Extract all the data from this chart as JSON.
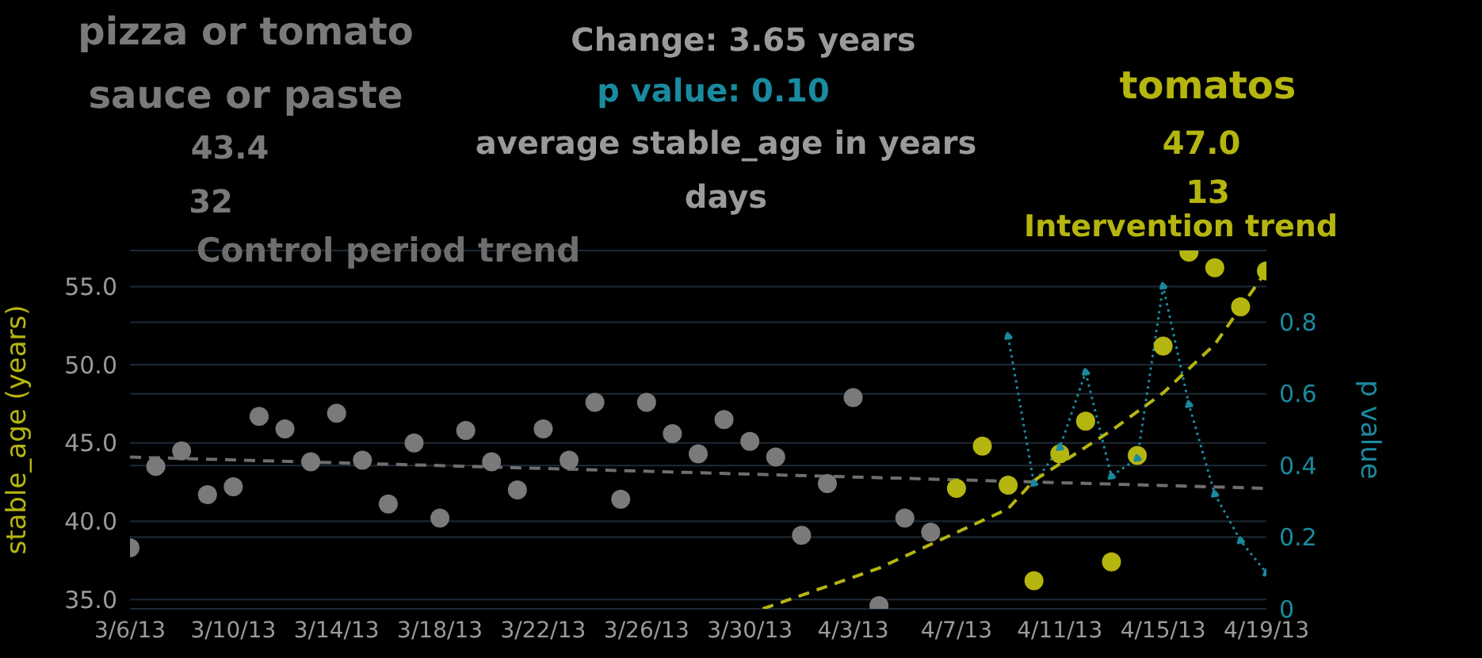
{
  "chart_data": {
    "type": "scatter",
    "ylabel": "stable_age (years)",
    "y2label": "p value",
    "x": [
      "--03-06",
      "--03-07",
      "--03-08",
      "--03-09",
      "--03-10",
      "--03-11",
      "--03-12",
      "--03-13",
      "--03-14",
      "--03-15",
      "--03-16",
      "--03-17",
      "--03-18",
      "--03-19",
      "--03-20",
      "--03-21",
      "--03-22",
      "--03-23",
      "--03-24",
      "--03-25",
      "--03-26",
      "--03-27",
      "--03-28",
      "--03-29",
      "--03-30",
      "--03-31",
      "--04-01",
      "--04-02",
      "--04-03",
      "--04-04",
      "--04-05",
      "--04-06",
      "--04-07",
      "--04-08",
      "--04-09",
      "--04-10",
      "--04-11",
      "--04-12",
      "--04-13",
      "--04-14",
      "--04-15",
      "--04-16",
      "--04-17",
      "--04-18",
      "--04-19"
    ],
    "xlim": [
      "--03-06",
      "--04-19"
    ],
    "xticks": [
      {
        "value": "--03-06",
        "label": "3/6/13"
      },
      {
        "value": "--03-10",
        "label": "3/10/13"
      },
      {
        "value": "--03-14",
        "label": "3/14/13"
      },
      {
        "value": "--03-18",
        "label": "3/18/13"
      },
      {
        "value": "--03-22",
        "label": "3/22/13"
      },
      {
        "value": "--03-26",
        "label": "3/26/13"
      },
      {
        "value": "--03-30",
        "label": "3/30/13"
      },
      {
        "value": "--04-03",
        "label": "4/3/13"
      },
      {
        "value": "--04-07",
        "label": "4/7/13"
      },
      {
        "value": "--04-11",
        "label": "4/11/13"
      },
      {
        "value": "--04-15",
        "label": "4/15/13"
      },
      {
        "value": "--04-19",
        "label": "4/19/13"
      }
    ],
    "ylim": [
      34.4,
      57.3
    ],
    "yticks": [
      {
        "value": 35,
        "label": "35.0"
      },
      {
        "value": 40,
        "label": "40.0"
      },
      {
        "value": 45,
        "label": "45.0"
      },
      {
        "value": 50,
        "label": "50.0"
      },
      {
        "value": 55,
        "label": "55.0"
      }
    ],
    "y2lim": [
      0,
      1
    ],
    "y2ticks": [
      0,
      0.2,
      0.4,
      0.6,
      0.8
    ],
    "grid": "y",
    "marker": "circle",
    "series": [
      {
        "name": "pizza or tomato sauce or paste",
        "color": "#7a7a7a",
        "values": [
          38.3,
          43.5,
          44.5,
          41.7,
          42.2,
          46.7,
          45.9,
          43.8,
          46.9,
          43.9,
          41.1,
          45.0,
          40.2,
          45.8,
          43.8,
          42.0,
          45.9,
          43.9,
          47.6,
          41.4,
          47.6,
          45.6,
          44.3,
          46.5,
          45.1,
          44.1,
          39.1,
          42.4,
          47.9,
          34.6,
          40.2,
          39.3,
          null,
          null,
          null,
          null,
          null,
          null,
          null,
          null,
          null,
          null,
          null,
          null,
          null
        ]
      },
      {
        "name": "tomatos",
        "color": "#b5b510",
        "values": [
          null,
          null,
          null,
          null,
          null,
          null,
          null,
          null,
          null,
          null,
          null,
          null,
          null,
          null,
          null,
          null,
          null,
          null,
          null,
          null,
          null,
          null,
          null,
          null,
          null,
          null,
          null,
          null,
          null,
          null,
          null,
          null,
          42.1,
          44.8,
          42.3,
          36.2,
          44.3,
          46.4,
          37.4,
          44.2,
          51.2,
          57.2,
          56.2,
          53.7,
          56.0
        ]
      },
      {
        "type": "line",
        "axis": "y2",
        "color": "#1a8aa0",
        "line_style": "dotted",
        "marker": "circle",
        "values": [
          null,
          null,
          null,
          null,
          null,
          null,
          null,
          null,
          null,
          null,
          null,
          null,
          null,
          null,
          null,
          null,
          null,
          null,
          null,
          null,
          null,
          null,
          null,
          null,
          null,
          null,
          null,
          null,
          null,
          null,
          null,
          null,
          null,
          null,
          0.76,
          0.35,
          0.45,
          0.66,
          0.37,
          0.42,
          0.9,
          0.57,
          0.32,
          0.19,
          0.1
        ]
      },
      {
        "name": "Control period trend",
        "type": "line",
        "color": "#6e6e6e",
        "line_style": "dashed",
        "marker": "none",
        "x": [
          "--03-06",
          "--04-19"
        ],
        "values": [
          44.1,
          42.1
        ]
      },
      {
        "name": "Intervention trend",
        "type": "line",
        "color": "#b5b510",
        "line_style": "dashed",
        "marker": "none",
        "x": [
          "--03-30T12:00",
          "--04-04",
          "--04-09",
          "--04-10",
          "--04-13",
          "--04-15",
          "--04-17",
          "--04-19"
        ],
        "values": [
          34.4,
          37.0,
          40.8,
          42.6,
          45.8,
          48.2,
          51.3,
          56.0
        ]
      }
    ],
    "annotations": [
      "43.4",
      "32",
      "Change: 3.65 years",
      "p value: 0.10",
      "average stable_age in years",
      "days",
      "47.0",
      "13"
    ]
  }
}
